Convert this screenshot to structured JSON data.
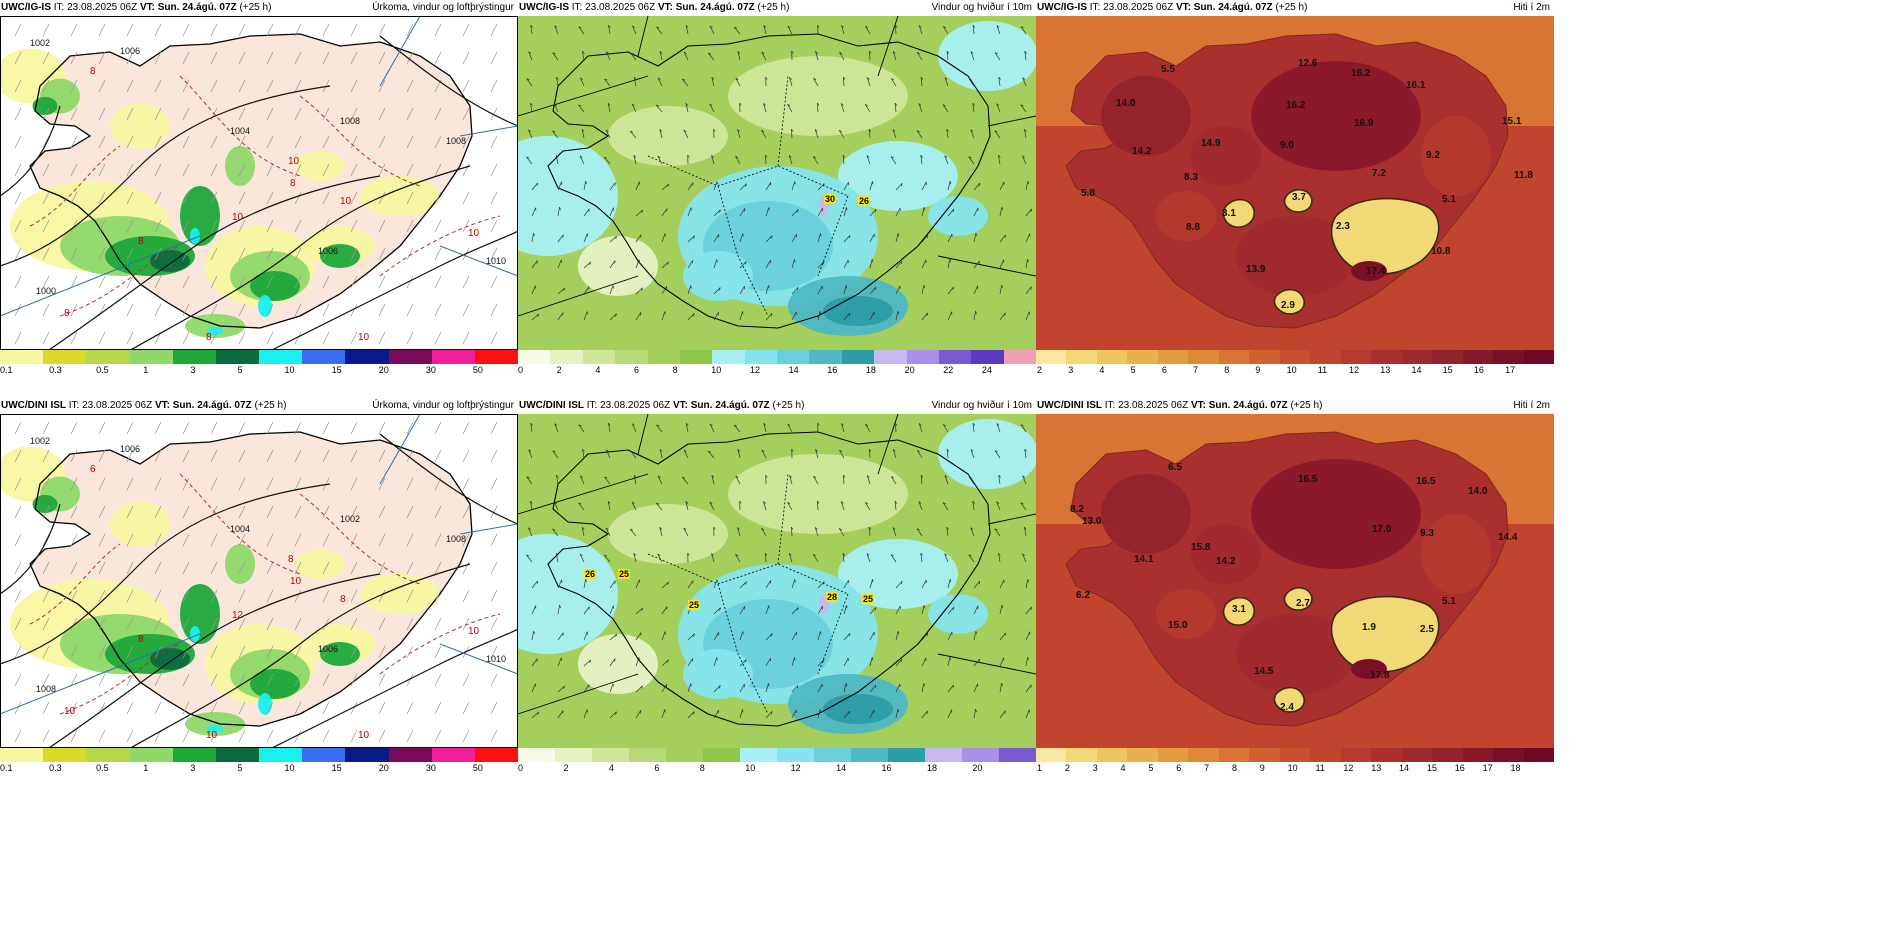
{
  "panels": [
    {
      "model": "UWC/IG-IS",
      "it": "23.08.2025 06Z",
      "vt": "Sun. 24.ágú. 07Z",
      "lead": "(+25 h)",
      "title_right": "Úrkoma, vindur og loftþrýstingur",
      "type": "precip",
      "ticks": [
        "0.1",
        "0.3",
        "0.5",
        "1",
        "3",
        "5",
        "10",
        "15",
        "20",
        "30",
        "50"
      ],
      "isobars": [
        "1002",
        "1004",
        "1006",
        "1008",
        "1010",
        "1000",
        "1006",
        "1008"
      ],
      "temps": [
        "8",
        "8",
        "8",
        "10",
        "10",
        "10",
        "10",
        "8",
        "8",
        "10"
      ]
    },
    {
      "model": "UWC/IG-IS",
      "it": "23.08.2025 06Z",
      "vt": "Sun. 24.ágú. 07Z",
      "lead": "(+25 h)",
      "title_right": "Vindur og hviður í 10m",
      "type": "wind",
      "ticks": [
        "0",
        "2",
        "4",
        "6",
        "8",
        "10",
        "12",
        "14",
        "16",
        "18",
        "20",
        "22",
        "24"
      ],
      "gusts": [
        "30",
        "26"
      ]
    },
    {
      "model": "UWC/IG-IS",
      "it": "23.08.2025 06Z",
      "vt": "Sun. 24.ágú. 07Z",
      "lead": "(+25 h)",
      "title_right": "Hiti í 2m",
      "type": "temp",
      "ticks": [
        "2",
        "3",
        "4",
        "5",
        "6",
        "7",
        "8",
        "9",
        "10",
        "11",
        "12",
        "13",
        "14",
        "15",
        "16",
        "17"
      ],
      "values": [
        "5.5",
        "12.6",
        "16.2",
        "14.0",
        "16.1",
        "16.2",
        "14.2",
        "14.9",
        "16.9",
        "9.0",
        "15.1",
        "9.2",
        "8.3",
        "7.2",
        "11.8",
        "5.8",
        "3.1",
        "3.7",
        "5.1",
        "8.8",
        "2.3",
        "10.8",
        "13.9",
        "17.4",
        "2.9"
      ]
    },
    {
      "model": "UWC/DINI ISL",
      "it": "23.08.2025 06Z",
      "vt": "Sun. 24.ágú. 07Z",
      "lead": "(+25 h)",
      "title_right": "Úrkoma, vindur og loftþrýstingur",
      "type": "precip",
      "ticks": [
        "0.1",
        "0.3",
        "0.5",
        "1",
        "3",
        "5",
        "10",
        "15",
        "20",
        "30",
        "50"
      ],
      "isobars": [
        "1002",
        "1004",
        "1006",
        "1008",
        "1010",
        "1008",
        "1006",
        "1002"
      ],
      "temps": [
        "6",
        "8",
        "10",
        "12",
        "8",
        "10",
        "8",
        "10",
        "10",
        "10"
      ]
    },
    {
      "model": "UWC/DINI ISL",
      "it": "23.08.2025 06Z",
      "vt": "Sun. 24.ágú. 07Z",
      "lead": "(+25 h)",
      "title_right": "Vindur og hviður í 10m",
      "type": "wind",
      "ticks": [
        "0",
        "2",
        "4",
        "6",
        "8",
        "10",
        "12",
        "14",
        "16",
        "18",
        "20"
      ],
      "gusts": [
        "26",
        "25",
        "25",
        "28",
        "25"
      ]
    },
    {
      "model": "UWC/DINI ISL",
      "it": "23.08.2025 06Z",
      "vt": "Sun. 24.ágú. 07Z",
      "lead": "(+25 h)",
      "title_right": "Hiti í 2m",
      "type": "temp",
      "ticks": [
        "1",
        "2",
        "3",
        "4",
        "5",
        "6",
        "7",
        "8",
        "9",
        "10",
        "11",
        "12",
        "13",
        "14",
        "15",
        "16",
        "17",
        "18"
      ],
      "values": [
        "6.5",
        "16.5",
        "16.5",
        "8.2",
        "14.0",
        "13.0",
        "15.8",
        "17.0",
        "9.3",
        "14.1",
        "14.4",
        "14.2",
        "6.2",
        "3.1",
        "2.7",
        "5.1",
        "15.0",
        "1.9",
        "2.5",
        "14.5",
        "17.8",
        "2.4"
      ]
    }
  ],
  "colors": {
    "precip": [
      "#f7f7a0",
      "#d9d92a",
      "#b8d84a",
      "#8fd86a",
      "#1ea83a",
      "#0b6a3c",
      "#19f0f0",
      "#3a6ef0",
      "#0a1a8a",
      "#7a0a5a",
      "#f0209a",
      "#ff1010"
    ],
    "wind": [
      "#f5fbe6",
      "#e6f2c4",
      "#cfe69a",
      "#b8d978",
      "#a4cf5c",
      "#8ec84a",
      "#a8f0f4",
      "#86e4ec",
      "#6ad0dc",
      "#4eb8c4",
      "#2c9ca8",
      "#c8b8f0",
      "#a890e8",
      "#7a5ad0",
      "#5a3ac0",
      "#f0a0b4"
    ],
    "temp": [
      "#f8e8a0",
      "#f3d878",
      "#eec45e",
      "#e9b04e",
      "#e49c40",
      "#df8838",
      "#d97434",
      "#d06030",
      "#c8502e",
      "#c0442e",
      "#b63a30",
      "#aa3030",
      "#9e2a2e",
      "#92222c",
      "#86182a",
      "#7a1028",
      "#6e0824"
    ]
  }
}
